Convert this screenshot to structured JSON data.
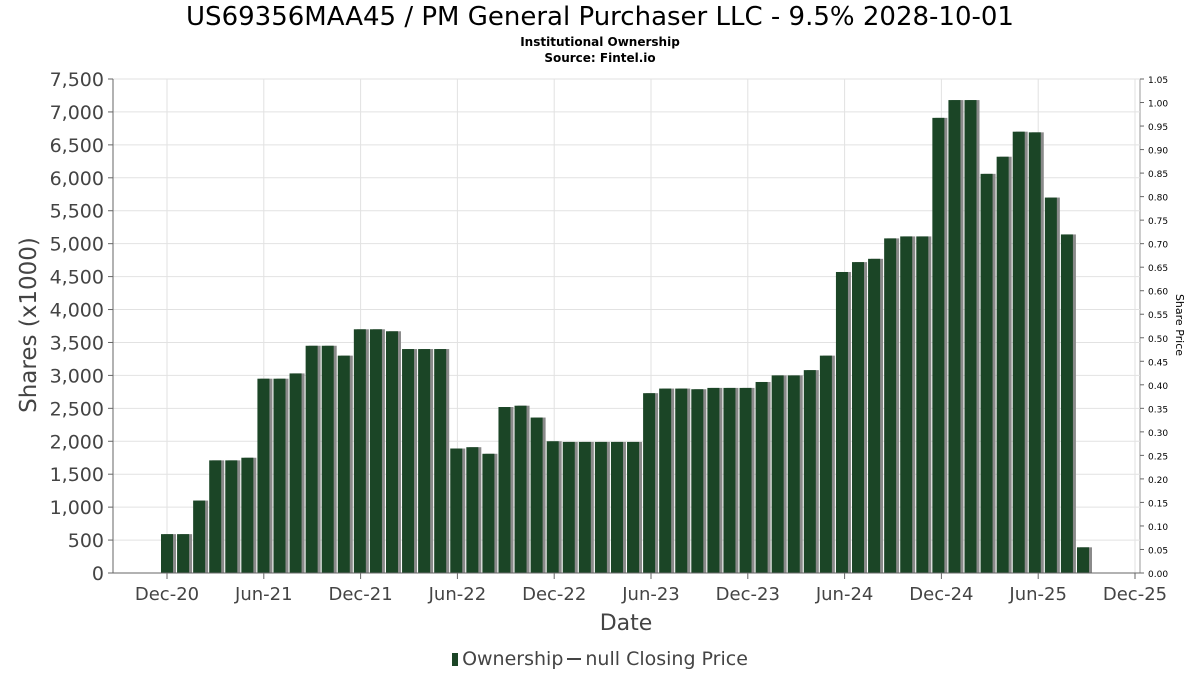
{
  "chart_data": {
    "type": "bar",
    "title": "US69356MAA45 / PM General Purchaser LLC - 9.5% 2028-10-01",
    "subtitle": "Institutional Ownership",
    "source": "Source: Fintel.io",
    "xlabel": "Date",
    "ylabel": "Shares (x1000)",
    "y2label": "Share Price",
    "ylim": [
      0,
      7500
    ],
    "y2lim": [
      0,
      1.05
    ],
    "yticks": [
      "0",
      "500",
      "1,000",
      "1,500",
      "2,000",
      "2,500",
      "3,000",
      "3,500",
      "4,000",
      "4,500",
      "5,000",
      "5,500",
      "6,000",
      "6,500",
      "7,000",
      "7,500"
    ],
    "y2ticks": [
      "0.00",
      "0.05",
      "0.10",
      "0.15",
      "0.20",
      "0.25",
      "0.30",
      "0.35",
      "0.40",
      "0.45",
      "0.50",
      "0.55",
      "0.60",
      "0.65",
      "0.70",
      "0.75",
      "0.80",
      "0.85",
      "0.90",
      "0.95",
      "1.00",
      "1.05"
    ],
    "xticks": [
      "Dec-20",
      "Jun-21",
      "Dec-21",
      "Jun-22",
      "Dec-22",
      "Jun-23",
      "Dec-23",
      "Jun-24",
      "Dec-24",
      "Jun-25",
      "Dec-25"
    ],
    "grid": true,
    "legend_position": "bottom",
    "series": [
      {
        "name": "Ownership",
        "color": "#1b4526",
        "values": [
          590,
          590,
          1100,
          1710,
          1710,
          1750,
          2950,
          2950,
          3030,
          3450,
          3450,
          3300,
          3700,
          3700,
          3670,
          3400,
          3400,
          3400,
          1890,
          1910,
          1810,
          2520,
          2540,
          2360,
          2000,
          1990,
          1990,
          1990,
          1990,
          1990,
          2730,
          2800,
          2800,
          2790,
          2810,
          2810,
          2810,
          2900,
          3000,
          3000,
          3080,
          3300,
          4570,
          4720,
          4770,
          5080,
          5110,
          5110,
          6910,
          7180,
          7180,
          6060,
          6320,
          6700,
          6690,
          5700,
          5140,
          390
        ]
      },
      {
        "name": "null Closing Price",
        "color": "#444444",
        "values": []
      }
    ]
  }
}
